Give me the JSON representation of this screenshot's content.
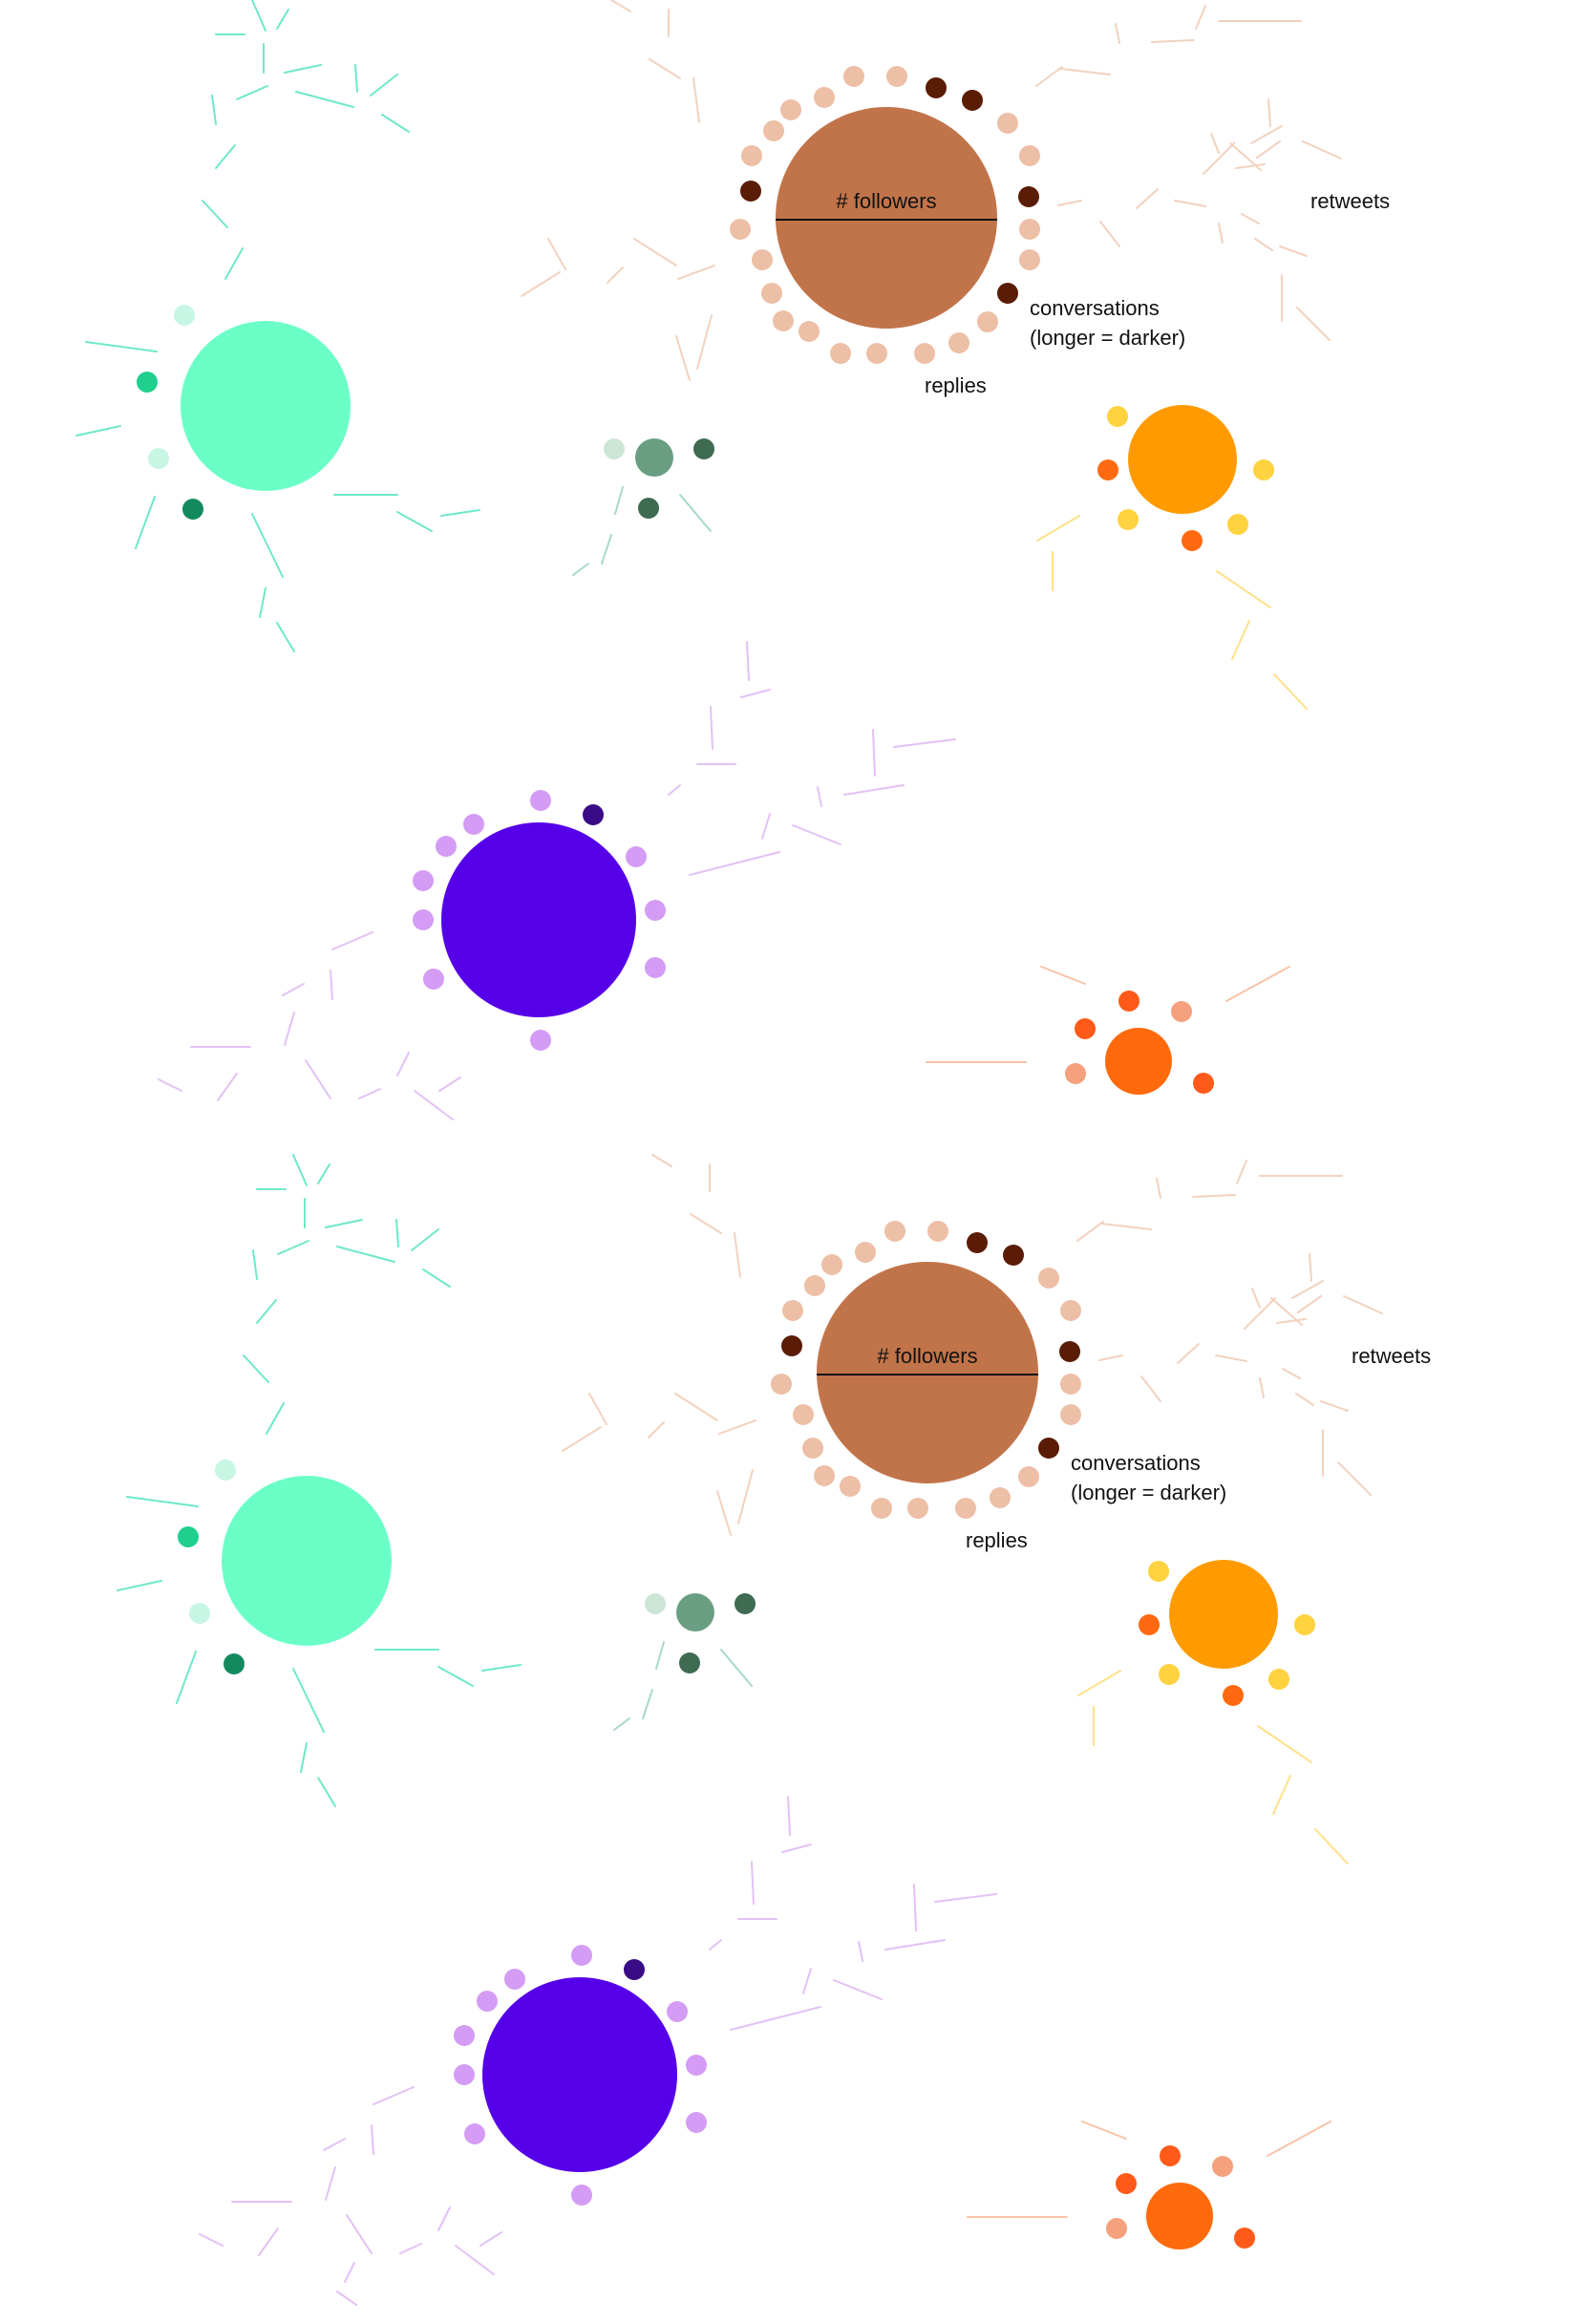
{
  "title": "",
  "legend": {
    "followers_label": "# followers",
    "retweets_label": "retweets",
    "conversations_label_line1": "conversations",
    "conversations_label_line2": "(longer = darker)",
    "replies_label": "replies"
  },
  "colors": {
    "brown_main": "#C1744A",
    "brown_reply_light": "#EDBFA6",
    "brown_reply_dark": "#5A1C05",
    "brown_retweet": "#F2D2BF",
    "mint_main": "#6BFFC8",
    "mint_reply_light": "#C8F6E4",
    "mint_reply_mid": "#1FCF8D",
    "mint_reply_dark": "#138A5E",
    "mint_retweet": "#6EE8C9",
    "sage_main": "#6A9E82",
    "sage_reply_light": "#CCE6D6",
    "sage_reply_dark": "#3E6B52",
    "sage_retweet": "#A8D9C8",
    "amber_main": "#FF9B00",
    "amber_reply_light": "#FFD23F",
    "amber_reply_dark": "#FF6A10",
    "amber_retweet": "#FFE08A",
    "violet_main": "#5500E8",
    "violet_reply_light": "#D49CF5",
    "violet_reply_dark": "#3A0B86",
    "violet_retweet": "#E2C2F5",
    "tangerine_main": "#FF6A0C",
    "tangerine_reply_light": "#F5A17E",
    "tangerine_reply_dark": "#FF5A1A",
    "tangerine_retweet": "#F8C3A8"
  },
  "panels": [
    {
      "id": "panel-top",
      "nodes": [
        {
          "id": "brown",
          "palette": "brown",
          "followers_scale": 1.0,
          "replies_short": 23,
          "replies_long": 5,
          "retweets": 34,
          "annotated": true
        },
        {
          "id": "mint",
          "palette": "mint",
          "followers_scale": 0.77,
          "replies_short": 2,
          "replies_long": 2,
          "retweets": 20,
          "annotated": false
        },
        {
          "id": "sage",
          "palette": "sage",
          "followers_scale": 0.17,
          "replies_short": 1,
          "replies_long": 2,
          "retweets": 6,
          "annotated": false
        },
        {
          "id": "amber",
          "palette": "amber",
          "followers_scale": 0.49,
          "replies_short": 4,
          "replies_long": 2,
          "retweets": 7,
          "annotated": false
        },
        {
          "id": "violet",
          "palette": "violet",
          "followers_scale": 0.88,
          "replies_short": 10,
          "replies_long": 1,
          "retweets": 24,
          "annotated": false
        },
        {
          "id": "tangerine",
          "palette": "tangerine",
          "followers_scale": 0.3,
          "replies_short": 2,
          "replies_long": 3,
          "retweets": 4,
          "annotated": false
        }
      ]
    },
    {
      "id": "panel-bottom",
      "nodes": [
        {
          "id": "brown",
          "palette": "brown",
          "followers_scale": 1.0,
          "replies_short": 23,
          "replies_long": 5,
          "retweets": 34,
          "annotated": true
        },
        {
          "id": "mint",
          "palette": "mint",
          "followers_scale": 0.77,
          "replies_short": 2,
          "replies_long": 2,
          "retweets": 20,
          "annotated": false
        },
        {
          "id": "sage",
          "palette": "sage",
          "followers_scale": 0.17,
          "replies_short": 1,
          "replies_long": 2,
          "retweets": 6,
          "annotated": false
        },
        {
          "id": "amber",
          "palette": "amber",
          "followers_scale": 0.49,
          "replies_short": 4,
          "replies_long": 2,
          "retweets": 7,
          "annotated": false
        },
        {
          "id": "violet",
          "palette": "violet",
          "followers_scale": 0.88,
          "replies_short": 10,
          "replies_long": 1,
          "retweets": 24,
          "annotated": false
        },
        {
          "id": "tangerine",
          "palette": "tangerine",
          "followers_scale": 0.3,
          "replies_short": 2,
          "replies_long": 3,
          "retweets": 4,
          "annotated": false
        }
      ]
    }
  ]
}
